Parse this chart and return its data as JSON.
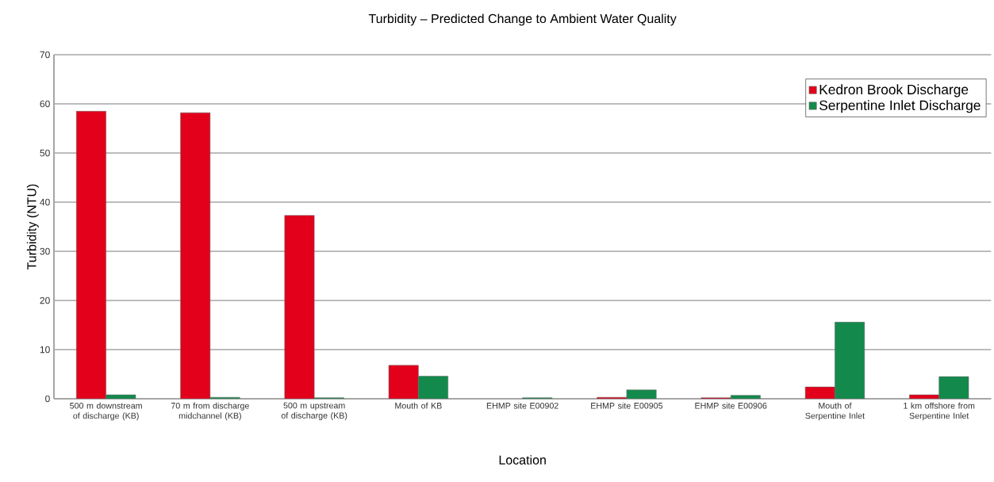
{
  "chart_data": {
    "type": "bar",
    "title": "Turbidity – Predicted Change to Ambient Water Quality",
    "xlabel": "Location",
    "ylabel": "Turbidity (NTU)",
    "categories": [
      "500 m downstream of discharge (KB)",
      "70 m from discharge midchannel (KB)",
      "500 m upstream of discharge (KB)",
      "Mouth of KB",
      "EHMP site E00902",
      "EHMP site E00905",
      "EHMP site E00906",
      "Mouth of Serpentine Inlet",
      "1 km offshore from Serpentine Inlet"
    ],
    "series": [
      {
        "name": "Kedron Brook Discharge",
        "color": "#e2001a",
        "values": [
          58.5,
          58.2,
          37.3,
          6.8,
          null,
          0.3,
          0.2,
          2.4,
          0.8
        ]
      },
      {
        "name": "Serpentine Inlet Discharge",
        "color": "#138a4c",
        "values": [
          0.8,
          0.3,
          0.2,
          4.6,
          0.2,
          1.8,
          0.7,
          15.6,
          4.5
        ]
      }
    ],
    "ylim": [
      0,
      70
    ],
    "yticks": [
      0,
      10,
      20,
      30,
      40,
      50,
      60,
      70
    ],
    "grid": "y",
    "legend": "top right"
  }
}
